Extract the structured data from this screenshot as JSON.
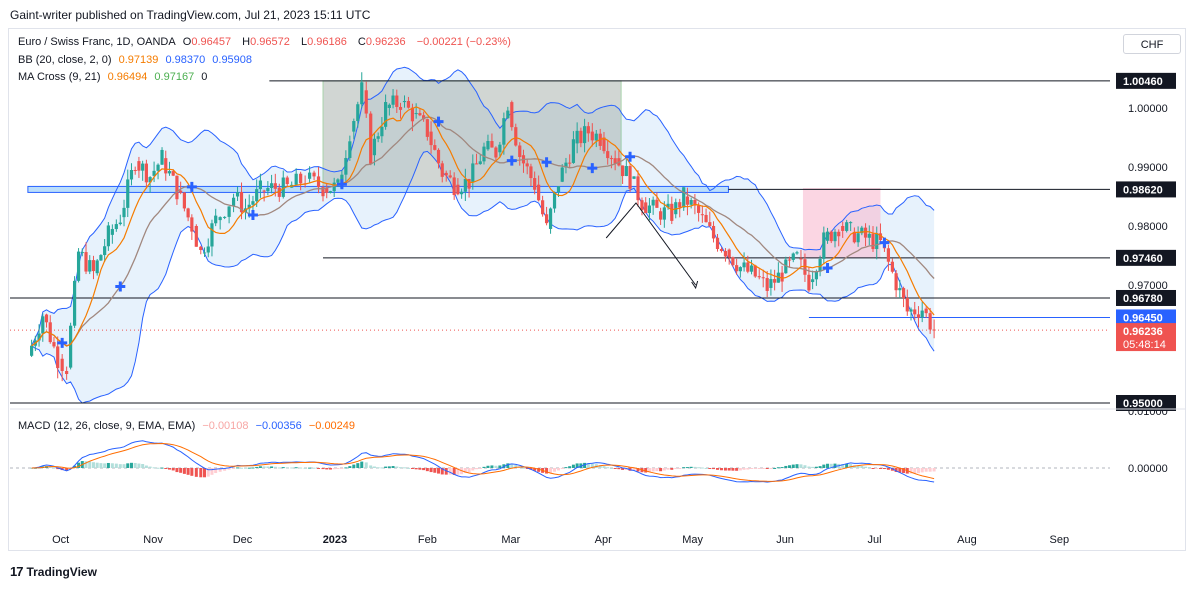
{
  "header": {
    "publisher_line": "Gaint-writer published on TradingView.com, Jul 21, 2023 15:11 UTC"
  },
  "legend": {
    "symbol": "Euro / Swiss Franc, 1D, OANDA",
    "ohlc": [
      {
        "k": "O",
        "v": "0.96457"
      },
      {
        "k": "H",
        "v": "0.96572"
      },
      {
        "k": "L",
        "v": "0.96186"
      },
      {
        "k": "C",
        "v": "0.96236"
      }
    ],
    "change": "−0.00221 (−0.23%)",
    "bb_label": "BB (20, close, 2, 0)",
    "bb_values": [
      "0.97139",
      "0.98370",
      "0.95908"
    ],
    "ma_label": "MA Cross (9, 21)",
    "ma_values": [
      "0.96494",
      "0.97167",
      "0"
    ],
    "macd_label": "MACD (12, 26, close, 9, EMA, EMA)",
    "macd_values": [
      "−0.00108",
      "−0.00356",
      "−0.00249"
    ]
  },
  "currency_button": "CHF",
  "footer": {
    "brand": "TradingView",
    "logo_text": "17"
  },
  "colors": {
    "up": "#26a69a",
    "down": "#ef5350",
    "bb": "#2962ff",
    "bb_fill": "#e3f0fb",
    "ma_fast": "#f57c00",
    "ma_slow": "#a1887f",
    "macd": "#2962ff",
    "signal": "#ff6d00"
  },
  "chart_data": {
    "type": "candlestick",
    "price_axis_ticks": [
      "1.00000",
      "0.99000",
      "0.98000",
      "0.97000",
      "0.01000",
      "0.00000"
    ],
    "time_axis_ticks": [
      "Oct",
      "Nov",
      "Dec",
      "2023",
      "Feb",
      "Mar",
      "Apr",
      "May",
      "Jun",
      "Jul",
      "Aug",
      "Sep"
    ],
    "horizontal_levels": [
      {
        "label": "1.00460",
        "value": 1.0046
      },
      {
        "label": "0.98620",
        "value": 0.9862
      },
      {
        "label": "0.97460",
        "value": 0.9746
      },
      {
        "label": "0.96780",
        "value": 0.9678
      },
      {
        "label": "0.95000",
        "value": 0.95
      }
    ],
    "current_price": {
      "label": "0.96236",
      "value": 0.96236,
      "countdown": "05:48:14"
    },
    "bb_middle_label": "0.96450",
    "price_path": [
      [
        "2022-09-20",
        0.958
      ],
      [
        "2022-09-25",
        0.965
      ],
      [
        "2022-09-30",
        0.9575
      ],
      [
        "2022-10-03",
        0.956
      ],
      [
        "2022-10-07",
        0.9755
      ],
      [
        "2022-10-12",
        0.972
      ],
      [
        "2022-10-17",
        0.9785
      ],
      [
        "2022-10-21",
        0.9815
      ],
      [
        "2022-10-26",
        0.991
      ],
      [
        "2022-10-31",
        0.9885
      ],
      [
        "2022-11-04",
        0.9915
      ],
      [
        "2022-11-09",
        0.986
      ],
      [
        "2022-11-14",
        0.98
      ],
      [
        "2022-11-17",
        0.9755
      ],
      [
        "2022-11-22",
        0.981
      ],
      [
        "2022-11-28",
        0.985
      ],
      [
        "2022-12-02",
        0.983
      ],
      [
        "2022-12-07",
        0.986
      ],
      [
        "2022-12-12",
        0.9865
      ],
      [
        "2022-12-16",
        0.9865
      ],
      [
        "2022-12-22",
        0.988
      ],
      [
        "2022-12-28",
        0.9865
      ],
      [
        "2023-01-02",
        0.9865
      ],
      [
        "2023-01-06",
        0.996
      ],
      [
        "2023-01-10",
        1.003
      ],
      [
        "2023-01-13",
        0.992
      ],
      [
        "2023-01-18",
        1.0
      ],
      [
        "2023-01-23",
        1.001
      ],
      [
        "2023-01-27",
        0.999
      ],
      [
        "2023-02-01",
        0.996
      ],
      [
        "2023-02-06",
        0.989
      ],
      [
        "2023-02-10",
        0.987
      ],
      [
        "2023-02-15",
        0.9875
      ],
      [
        "2023-02-20",
        0.993
      ],
      [
        "2023-02-24",
        0.9925
      ],
      [
        "2023-02-28",
        1.001
      ],
      [
        "2023-03-04",
        0.992
      ],
      [
        "2023-03-09",
        0.987
      ],
      [
        "2023-03-13",
        0.9795
      ],
      [
        "2023-03-17",
        0.9875
      ],
      [
        "2023-03-22",
        0.994
      ],
      [
        "2023-03-27",
        0.996
      ],
      [
        "2023-03-31",
        0.995
      ],
      [
        "2023-04-05",
        0.9915
      ],
      [
        "2023-04-10",
        0.988
      ],
      [
        "2023-04-14",
        0.984
      ],
      [
        "2023-04-19",
        0.9825
      ],
      [
        "2023-04-24",
        0.982
      ],
      [
        "2023-04-28",
        0.985
      ],
      [
        "2023-05-03",
        0.982
      ],
      [
        "2023-05-08",
        0.978
      ],
      [
        "2023-05-12",
        0.976
      ],
      [
        "2023-05-17",
        0.973
      ],
      [
        "2023-05-22",
        0.9715
      ],
      [
        "2023-05-26",
        0.9695
      ],
      [
        "2023-05-31",
        0.972
      ],
      [
        "2023-06-05",
        0.9745
      ],
      [
        "2023-06-09",
        0.9705
      ],
      [
        "2023-06-14",
        0.9775
      ],
      [
        "2023-06-19",
        0.98
      ],
      [
        "2023-06-23",
        0.979
      ],
      [
        "2023-06-28",
        0.978
      ],
      [
        "2023-07-03",
        0.977
      ],
      [
        "2023-07-07",
        0.972
      ],
      [
        "2023-07-12",
        0.9655
      ],
      [
        "2023-07-17",
        0.966
      ],
      [
        "2023-07-21",
        0.9624
      ]
    ]
  }
}
